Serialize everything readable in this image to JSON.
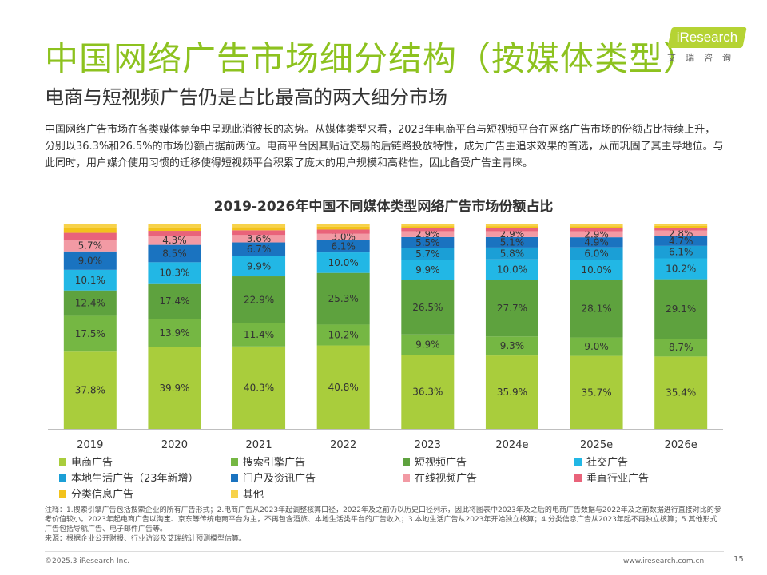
{
  "header": {
    "title": "中国网络广告市场细分结构（按媒体类型）",
    "subtitle": "电商与短视频广告仍是占比最高的两大细分市场"
  },
  "logo": {
    "brand": "iResearch",
    "brand_cn": "艾瑞咨询"
  },
  "intro": "中国网络广告市场在各类媒体竞争中呈现此消彼长的态势。从媒体类型来看，2023年电商平台与短视频平台在网络广告市场的份额占比持续上升，分别以36.3%和26.5%的市场份额占据前两位。电商平台因其贴近交易的后链路投放特性，成为广告主追求效果的首选，从而巩固了其主导地位。与此同时，用户媒介使用习惯的迁移使得短视频平台积累了庞大的用户规模和高粘性，因此备受广告主青睐。",
  "chart_data": {
    "type": "bar",
    "stacked": true,
    "title": "2019-2026年中国不同媒体类型网络广告市场份额占比",
    "categories": [
      "2019",
      "2020",
      "2021",
      "2022",
      "2023",
      "2024e",
      "2025e",
      "2026e"
    ],
    "ylim": [
      0,
      100
    ],
    "series": [
      {
        "name": "电商广告",
        "color": "#a9cd3c",
        "values": [
          37.8,
          39.9,
          40.3,
          40.8,
          36.3,
          35.9,
          35.7,
          35.4
        ]
      },
      {
        "name": "搜索引擎广告",
        "color": "#75b743",
        "values": [
          17.5,
          13.9,
          11.4,
          10.2,
          9.9,
          9.3,
          9.0,
          8.7
        ]
      },
      {
        "name": "短视频广告",
        "color": "#5ea23e",
        "values": [
          12.4,
          17.4,
          22.9,
          25.3,
          26.5,
          27.7,
          28.1,
          29.1
        ]
      },
      {
        "name": "社交广告",
        "color": "#22b7e5",
        "values": [
          10.1,
          10.3,
          9.9,
          10.0,
          9.9,
          10.0,
          10.0,
          10.2
        ]
      },
      {
        "name": "本地生活广告（23年新增）",
        "color": "#1b9fd6",
        "values": [
          null,
          null,
          null,
          null,
          5.7,
          5.8,
          6.0,
          6.1
        ]
      },
      {
        "name": "门户及资讯广告",
        "color": "#1a73c0",
        "values": [
          9.0,
          8.5,
          6.7,
          6.1,
          5.5,
          5.1,
          4.9,
          4.7
        ]
      },
      {
        "name": "在线视频广告",
        "color": "#f29aa4",
        "values": [
          5.7,
          4.3,
          3.6,
          3.0,
          2.9,
          2.9,
          2.9,
          2.8
        ]
      },
      {
        "name": "垂直行业广告",
        "color": "#e9637a",
        "values": [
          null,
          null,
          null,
          null,
          null,
          null,
          null,
          null
        ]
      },
      {
        "name": "分类信息广告",
        "color": "#f2c21b",
        "values": [
          null,
          null,
          null,
          null,
          null,
          null,
          null,
          null
        ]
      },
      {
        "name": "其他",
        "color": "#f7d24a",
        "values": [
          null,
          null,
          null,
          null,
          null,
          null,
          null,
          null
        ]
      }
    ]
  },
  "notes": [
    "注释：1.搜索引擎广告包括搜索企业的所有广告形式；2.电商广告从2023年起调整核算口径，2022年及之前仍以历史口径列示，因此将图表中2023年及之后的电商广告数据与2022年及之前数据进行直接对比的参考价值较小。2023年起电商广告以淘宝、京东等传统电商平台为主，不再包含酒旅、本地生活类平台的广告收入；3.本地生活广告从2023年开始独立核算；4.分类信息广告从2023年起不再独立核算；5.其他形式广告包括导航广告、电子邮件广告等。",
    "来源：根据企业公开财报、行业访谈及艾瑞统计预测模型估算。"
  ],
  "footer": {
    "copyright": "©2025.3 iResearch Inc.",
    "url": "www.iresearch.com.cn",
    "page": "15"
  }
}
